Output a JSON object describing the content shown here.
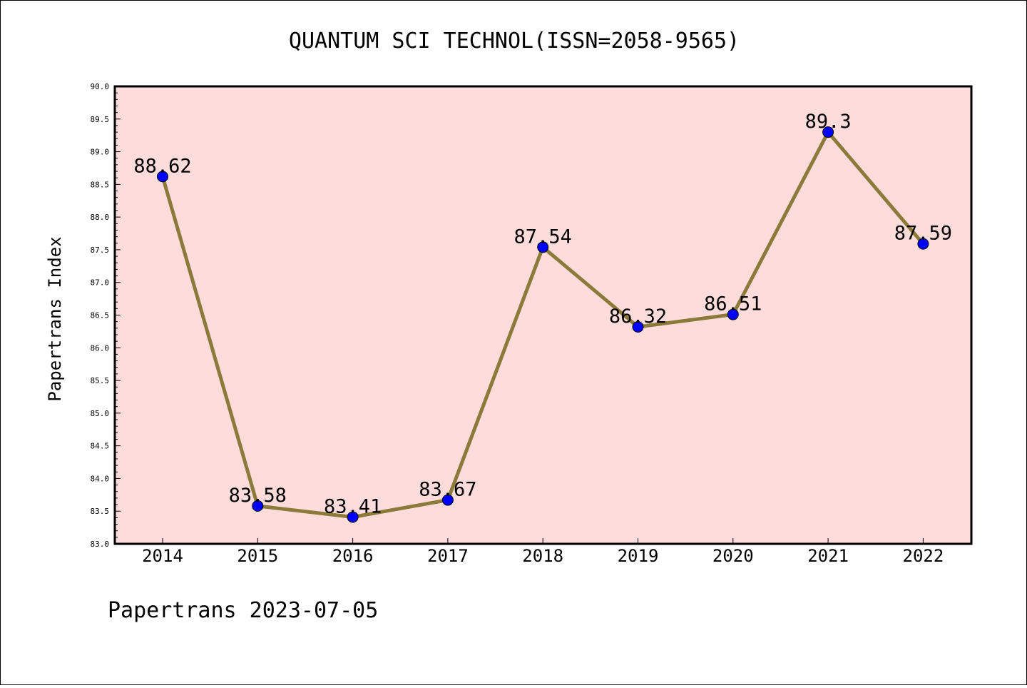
{
  "chart_data": {
    "type": "line",
    "title": "QUANTUM SCI TECHNOL(ISSN=2058-9565)",
    "xlabel": "",
    "ylabel": "Papertrans Index",
    "categories": [
      "2014",
      "2015",
      "2016",
      "2017",
      "2018",
      "2019",
      "2020",
      "2021",
      "2022"
    ],
    "values": [
      88.62,
      83.58,
      83.41,
      83.67,
      87.54,
      86.32,
      86.51,
      89.3,
      87.59
    ],
    "data_labels": [
      "88.62",
      "83.58",
      "83.41",
      "83.67",
      "87.54",
      "86.32",
      "86.51",
      "89.3",
      "87.59"
    ],
    "ylim": [
      83.0,
      90.0
    ],
    "yticks": [
      "83.0",
      "83.5",
      "84.0",
      "84.5",
      "85.0",
      "85.5",
      "86.0",
      "86.5",
      "87.0",
      "87.5",
      "88.0",
      "88.5",
      "89.0",
      "89.5",
      "90.0"
    ],
    "colors": {
      "plot_background": "#ffdcdc",
      "line": "#8b7a3a",
      "marker": "#0000ff"
    },
    "grid": false
  },
  "footer": {
    "text": "Papertrans 2023-07-05"
  }
}
